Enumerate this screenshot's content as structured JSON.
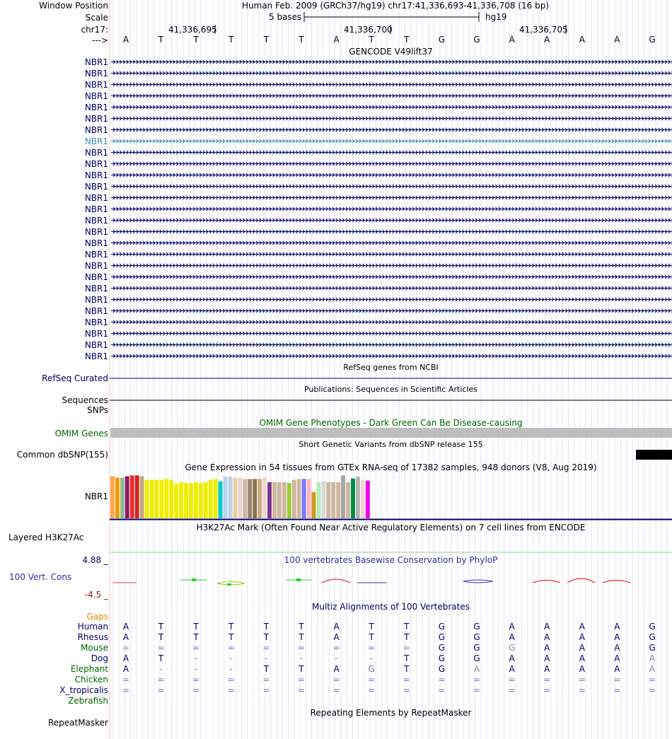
{
  "header": {
    "window_position_label": "Window Position",
    "scale_label": "Scale",
    "chrom_label": "chr17:",
    "strand_label": "--->",
    "assembly_position": "Human Feb. 2009 (GRCh37/hg19)   chr17:41,336,693-41,336,708 (16 bp)",
    "scale_text": "5 bases",
    "scale_assembly": "hg19",
    "coord_ticks": [
      "41,336,695",
      "41,336,700",
      "41,336,705"
    ],
    "bases": [
      "A",
      "T",
      "T",
      "T",
      "T",
      "T",
      "A",
      "T",
      "T",
      "G",
      "G",
      "A",
      "A",
      "A",
      "A",
      "G"
    ]
  },
  "gencode": {
    "title": "GENCODE V49lift37",
    "gene_label": "NBR1",
    "transcript_count": 27,
    "highlight_index": 7,
    "arrow_color": "#000066",
    "highlight_color": "#3B8FB5"
  },
  "refseq": {
    "title": "RefSeq genes from NCBI",
    "label": "RefSeq Curated",
    "line_color": "#0000aa"
  },
  "publications": {
    "title": "Publications: Sequences in Scientific Articles",
    "label": "Sequences"
  },
  "snps_label": "SNPs",
  "omim": {
    "title": "OMIM Gene Phenotypes - Dark Green Can Be Disease-causing",
    "label": "OMIM Genes",
    "title_color": "#006600",
    "bar_color": "#bebebe"
  },
  "dbsnp": {
    "title": "Short Genetic Variants from dbSNP release 155",
    "label": "Common dbSNP(155)"
  },
  "gtex": {
    "title": "Gene Expression in 54 tissues from GTEx RNA-seq of 17382 samples, 948 donors (V8, Aug 2019)",
    "label": "NBR1",
    "tissue_expression": [
      {
        "color": "#FFA54F",
        "value": 0.93
      },
      {
        "color": "#EE9A00",
        "value": 0.9
      },
      {
        "color": "#8FBC8F",
        "value": 0.9
      },
      {
        "color": "#8B1C62",
        "value": 0.93
      },
      {
        "color": "#EE2C2C",
        "value": 0.95
      },
      {
        "color": "#CD2626",
        "value": 0.95
      },
      {
        "color": "#C4A882",
        "value": 0.93
      },
      {
        "color": "#EEEE00",
        "value": 0.85
      },
      {
        "color": "#EEEE00",
        "value": 0.85
      },
      {
        "color": "#EEEE00",
        "value": 0.85
      },
      {
        "color": "#EEEE00",
        "value": 0.85
      },
      {
        "color": "#EEEE00",
        "value": 0.87
      },
      {
        "color": "#EEEE00",
        "value": 0.85
      },
      {
        "color": "#EEEE00",
        "value": 0.77
      },
      {
        "color": "#EEEE00",
        "value": 0.8
      },
      {
        "color": "#EEEE00",
        "value": 0.78
      },
      {
        "color": "#EEEE00",
        "value": 0.78
      },
      {
        "color": "#EEEE00",
        "value": 0.8
      },
      {
        "color": "#EEEE00",
        "value": 0.78
      },
      {
        "color": "#EEEE00",
        "value": 0.8
      },
      {
        "color": "#EEEE00",
        "value": 0.85
      },
      {
        "color": "#EEEE00",
        "value": 0.87
      },
      {
        "color": "#00CDCD",
        "value": 0.82
      },
      {
        "color": "#B9D3EE",
        "value": 0.92
      },
      {
        "color": "#B9D3EE",
        "value": 0.92
      },
      {
        "color": "#EECFA1",
        "value": 0.9
      },
      {
        "color": "#EED5D2",
        "value": 0.9
      },
      {
        "color": "#D1B9A9",
        "value": 0.87
      },
      {
        "color": "#A0826D",
        "value": 0.87
      },
      {
        "color": "#8B7355",
        "value": 0.87
      },
      {
        "color": "#CDAA7D",
        "value": 0.87
      },
      {
        "color": "#EED5D2",
        "value": 0.9
      },
      {
        "color": "#7A378B",
        "value": 0.8
      },
      {
        "color": "#CDB79E",
        "value": 0.8
      },
      {
        "color": "#CDB79E",
        "value": 0.8
      },
      {
        "color": "#CDB79E",
        "value": 0.8
      },
      {
        "color": "#9ACD32",
        "value": 0.78
      },
      {
        "color": "#CDB79E",
        "value": 0.85
      },
      {
        "color": "#CDB79E",
        "value": 0.87
      },
      {
        "color": "#7777FF",
        "value": 0.87
      },
      {
        "color": "#FFB6C1",
        "value": 0.87
      },
      {
        "color": "#CD9B1D",
        "value": 0.58
      },
      {
        "color": "#B4EEB4",
        "value": 0.8
      },
      {
        "color": "#D9D9D9",
        "value": 0.82
      },
      {
        "color": "#CDB79E",
        "value": 0.8
      },
      {
        "color": "#CDB79E",
        "value": 0.8
      },
      {
        "color": "#CDB79E",
        "value": 0.8
      },
      {
        "color": "#A6A6A6",
        "value": 0.95
      },
      {
        "color": "#CDB79E",
        "value": 0.8
      },
      {
        "color": "#008B45",
        "value": 0.88
      },
      {
        "color": "#B3B3B3",
        "value": 0.92
      },
      {
        "color": "#EED5D2",
        "value": 0.85
      },
      {
        "color": "#EE00EE",
        "value": 0.83
      }
    ]
  },
  "h3k27ac": {
    "title": "H3K27Ac Mark (Often Found Near Active Regulatory Elements) on 7 cell lines from ENCODE",
    "label": "Layered H3K27Ac"
  },
  "conservation": {
    "title": "100 vertebrates Basewise Conservation by PhyloP",
    "label": "100 Vert. Cons",
    "max_label": "4.88 _",
    "min_label": "-4.5 _",
    "title_color": "#2f2f9f",
    "score_scale": [
      -4.5,
      4.88
    ]
  },
  "multiz": {
    "title": "Multiz Alignments of 100 Vertebrates",
    "gaps_label": "Gaps",
    "species": [
      {
        "name": "Human",
        "color": "#000066",
        "bases": [
          "A",
          "T",
          "T",
          "T",
          "T",
          "T",
          "A",
          "T",
          "T",
          "G",
          "G",
          "A",
          "A",
          "A",
          "A",
          "G"
        ]
      },
      {
        "name": "Rhesus",
        "color": "#000066",
        "bases": [
          "A",
          "T",
          "T",
          "T",
          "T",
          "T",
          "A",
          "T",
          "T",
          "G",
          "G",
          "A",
          "A",
          "A",
          "A",
          "G"
        ]
      },
      {
        "name": "Mouse",
        "color": "#006600",
        "bases": [
          "=",
          "=",
          "=",
          "=",
          "=",
          "=",
          "=",
          "=",
          "=",
          "G",
          "G",
          "G",
          "A",
          "A",
          "A",
          "G"
        ]
      },
      {
        "name": "Dog",
        "color": "#000066",
        "bases": [
          "A",
          "T",
          "-",
          "-",
          "-",
          "-",
          "-",
          "-",
          "T",
          "G",
          "G",
          "A",
          "A",
          "A",
          "A",
          "A"
        ]
      },
      {
        "name": "Elephant",
        "color": "#006600",
        "bases": [
          "A",
          "-",
          "-",
          "-",
          "T",
          "T",
          "A",
          "G",
          "T",
          "G",
          "A",
          "A",
          "A",
          "A",
          "A",
          "A"
        ]
      },
      {
        "name": "Chicken",
        "color": "#006600",
        "bases": [
          "=",
          "=",
          "=",
          "=",
          "=",
          "=",
          "=",
          "=",
          "=",
          "=",
          "=",
          "=",
          "=",
          "=",
          "=",
          "="
        ]
      },
      {
        "name": "X_tropicalis",
        "color": "#000066",
        "bases": [
          "=",
          "=",
          "=",
          "=",
          "=",
          "=",
          "=",
          "=",
          "=",
          "=",
          "=",
          "=",
          "=",
          "=",
          "=",
          "="
        ]
      },
      {
        "name": "Zebrafish",
        "color": "#006600",
        "bases": []
      }
    ]
  },
  "repeatmasker": {
    "title": "Repeating Elements by RepeatMasker",
    "label": "RepeatMasker"
  }
}
